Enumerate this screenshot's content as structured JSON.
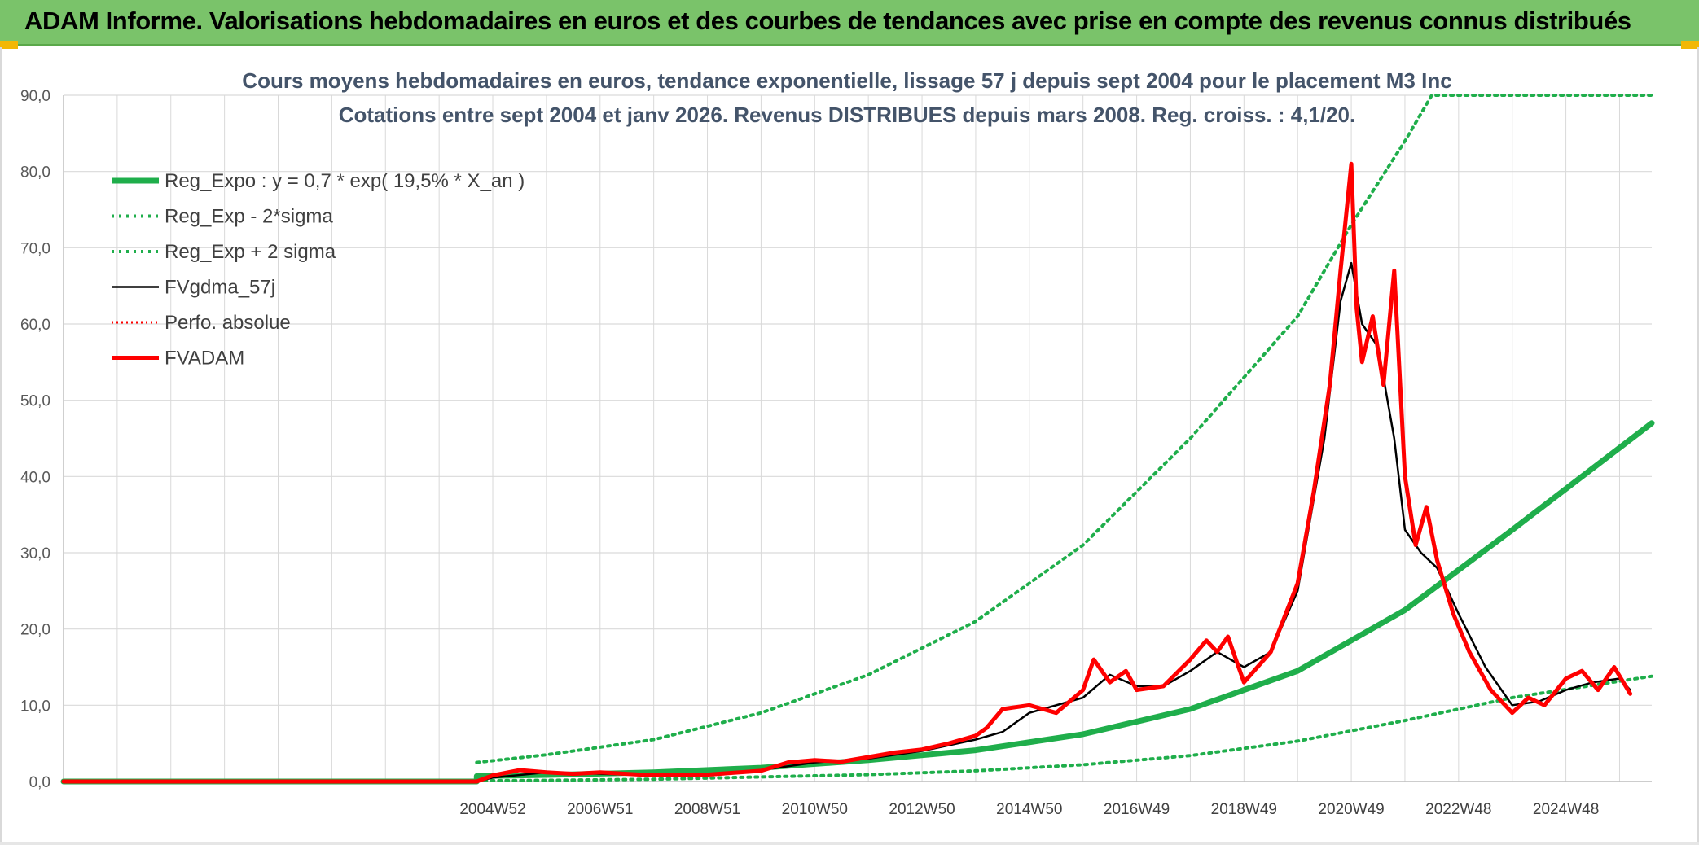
{
  "banner": {
    "title": "ADAM Informe. Valorisations hebdomadaires en euros et des courbes de tendances avec prise en compte des revenus connus distribués"
  },
  "colors": {
    "banner_bg": "#7ac36a",
    "accent_gold": "#f2b705",
    "reg_green": "#1fae4b",
    "red": "#ff0000",
    "black": "#000000",
    "grid": "#d9d9d9"
  },
  "chart_data": {
    "type": "line",
    "title": [
      "Cours moyens hebdomadaires en euros, tendance exponentielle, lissage 57 j depuis sept 2004 pour le placement M3 Inc",
      "Cotations entre sept 2004 et janv 2026. Revenus DISTRIBUES depuis mars 2008. Reg. croiss. : 4,1/20."
    ],
    "xlabel": "",
    "ylabel": "",
    "ylim": [
      0,
      90
    ],
    "yticks": [
      0,
      10,
      20,
      30,
      40,
      50,
      60,
      70,
      80,
      90
    ],
    "ytick_labels": [
      "0,0",
      "10,0",
      "20,0",
      "30,0",
      "40,0",
      "50,0",
      "60,0",
      "70,0",
      "80,0",
      "90,0"
    ],
    "xlim": [
      1997,
      2026.6
    ],
    "xticks": [
      2005,
      2007,
      2009,
      2011,
      2013,
      2015,
      2017,
      2019,
      2021,
      2023,
      2025
    ],
    "xtick_labels": [
      "2004W52",
      "2006W51",
      "2008W51",
      "2010W50",
      "2012W50",
      "2014W50",
      "2016W49",
      "2018W49",
      "2020W49",
      "2022W48",
      "2024W48"
    ],
    "grid": true,
    "legend_position": "top-left",
    "legend": [
      {
        "name": "Reg_Expo : y = 0,7 * exp( 19,5% *  X_an )",
        "style": "thick-solid",
        "color": "#1fae4b"
      },
      {
        "name": "Reg_Exp - 2*sigma",
        "style": "dotted",
        "color": "#1fae4b"
      },
      {
        "name": "Reg_Exp + 2 sigma",
        "style": "dotted",
        "color": "#1fae4b"
      },
      {
        "name": "FVgdma_57j",
        "style": "solid",
        "color": "#000000"
      },
      {
        "name": "Perfo. absolue",
        "style": "dotted",
        "color": "#ff0000"
      },
      {
        "name": "FVADAM",
        "style": "thick-solid",
        "color": "#ff0000"
      }
    ],
    "series": [
      {
        "name": "Reg_Expo : y = 0,7 * exp( 19,5% *  X_an )",
        "x": [
          1997,
          2004.7,
          2004.7,
          2006,
          2008,
          2010,
          2012,
          2014,
          2016,
          2018,
          2020,
          2022,
          2024,
          2026.6
        ],
        "values": [
          0,
          0,
          0.7,
          0.85,
          1.2,
          1.8,
          2.8,
          4.1,
          6.2,
          9.5,
          14.5,
          22.5,
          33,
          47
        ]
      },
      {
        "name": "Reg_Exp - 2*sigma",
        "x": [
          2004.7,
          2006,
          2008,
          2010,
          2012,
          2014,
          2016,
          2018,
          2020,
          2022,
          2024,
          2026.6
        ],
        "values": [
          0.1,
          0.15,
          0.3,
          0.6,
          0.9,
          1.4,
          2.2,
          3.4,
          5.3,
          8.0,
          11.0,
          13.8
        ]
      },
      {
        "name": "Reg_Exp + 2 sigma",
        "x": [
          2004.7,
          2006,
          2008,
          2010,
          2012,
          2014,
          2016,
          2018,
          2020,
          2021,
          2022,
          2022.5,
          2026.6
        ],
        "values": [
          2.5,
          3.5,
          5.5,
          9.0,
          14.0,
          21.0,
          31.0,
          45.0,
          61.0,
          73.0,
          84.0,
          90.0,
          90.0
        ]
      },
      {
        "name": "FVgdma_57j",
        "x": [
          1997,
          2004.7,
          2005,
          2006,
          2007,
          2008,
          2009,
          2010,
          2011,
          2012,
          2013,
          2014,
          2014.5,
          2015,
          2016,
          2016.5,
          2017,
          2017.5,
          2018,
          2018.5,
          2019,
          2019.5,
          2020,
          2020.5,
          2020.8,
          2021,
          2021.2,
          2021.5,
          2021.8,
          2022,
          2022.3,
          2022.6,
          2023,
          2023.5,
          2024,
          2024.5,
          2025,
          2025.5,
          2026,
          2026.2
        ],
        "values": [
          0,
          0,
          0.5,
          1.2,
          1.0,
          0.8,
          0.8,
          1.5,
          2.5,
          3.0,
          4.0,
          5.5,
          6.5,
          9.0,
          11.0,
          14.0,
          12.5,
          12.5,
          14.5,
          17.0,
          15.0,
          17.0,
          25.0,
          45.0,
          63.0,
          68.0,
          60.0,
          57.0,
          45.0,
          33.0,
          30.0,
          28.0,
          22.0,
          15.0,
          10.0,
          10.5,
          12.0,
          13.0,
          13.5,
          12.0
        ]
      },
      {
        "name": "FVADAM",
        "x": [
          1997,
          2004.7,
          2005,
          2005.5,
          2006,
          2006.5,
          2007,
          2008,
          2009,
          2010,
          2010.5,
          2011,
          2011.5,
          2012,
          2012.5,
          2013,
          2013.5,
          2014,
          2014.2,
          2014.5,
          2015,
          2015.5,
          2016,
          2016.2,
          2016.5,
          2016.8,
          2017,
          2017.5,
          2018,
          2018.3,
          2018.5,
          2018.7,
          2019,
          2019.5,
          2020,
          2020.3,
          2020.6,
          2020.8,
          2021,
          2021.1,
          2021.2,
          2021.4,
          2021.6,
          2021.8,
          2022,
          2022.2,
          2022.4,
          2022.6,
          2022.9,
          2023.2,
          2023.6,
          2024,
          2024.3,
          2024.6,
          2025,
          2025.3,
          2025.6,
          2025.9,
          2026.2
        ],
        "values": [
          0,
          0,
          0.8,
          1.5,
          1.2,
          1.0,
          1.2,
          0.8,
          0.9,
          1.4,
          2.5,
          2.8,
          2.6,
          3.2,
          3.8,
          4.2,
          5.0,
          6.0,
          7.0,
          9.5,
          10.0,
          9.0,
          12.0,
          16.0,
          13.0,
          14.5,
          12.0,
          12.5,
          16.0,
          18.5,
          17.0,
          19.0,
          13.0,
          17.0,
          26.0,
          38.0,
          52.0,
          67.0,
          81.0,
          62.0,
          55.0,
          61.0,
          52.0,
          67.0,
          40.0,
          31.0,
          36.0,
          29.0,
          22.0,
          17.0,
          12.0,
          9.0,
          11.0,
          10.0,
          13.5,
          14.5,
          12.0,
          15.0,
          11.5
        ]
      }
    ]
  }
}
